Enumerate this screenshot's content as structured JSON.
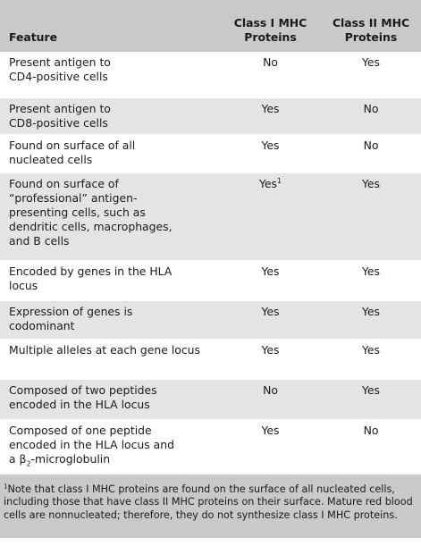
{
  "table": {
    "headers": {
      "feature": "Feature",
      "class1": "Class I MHC Proteins",
      "class2": "Class II MHC Proteins"
    },
    "rows": [
      {
        "feature": "Present antigen to CD4-positive cells",
        "class1": "No",
        "class2": "Yes"
      },
      {
        "feature": "Present antigen to CD8-positive cells",
        "class1": "Yes",
        "class2": "No"
      },
      {
        "feature": "Found on surface of all nucleated cells",
        "class1": "Yes",
        "class2": "No"
      },
      {
        "feature": "Found on surface of “professional” antigen-presenting cells, such as dendritic cells, macrophages, and B cells",
        "class1": "Yes",
        "class1_sup": "1",
        "class2": "Yes"
      },
      {
        "feature": "Encoded by genes in the HLA locus",
        "class1": "Yes",
        "class2": "Yes"
      },
      {
        "feature": "Expression of genes is codominant",
        "class1": "Yes",
        "class2": "Yes"
      },
      {
        "feature": "Multiple alleles at each gene locus",
        "class1": "Yes",
        "class2": "Yes"
      },
      {
        "feature": "Composed of two peptides encoded in the HLA locus",
        "class1": "No",
        "class2": "Yes"
      },
      {
        "feature_pre": "Composed of one peptide encoded in the HLA locus and a β",
        "feature_sub": "2",
        "feature_post": "-microglobulin",
        "class1": "Yes",
        "class2": "No"
      }
    ]
  },
  "footnote": {
    "marker": "1",
    "text": "Note that class I MHC proteins are found on the surface of all nucleated cells, including those that have class II MHC proteins on their surface. Mature red blood cells are nonnucleated; therefore, they do not synthesize class I MHC proteins."
  }
}
